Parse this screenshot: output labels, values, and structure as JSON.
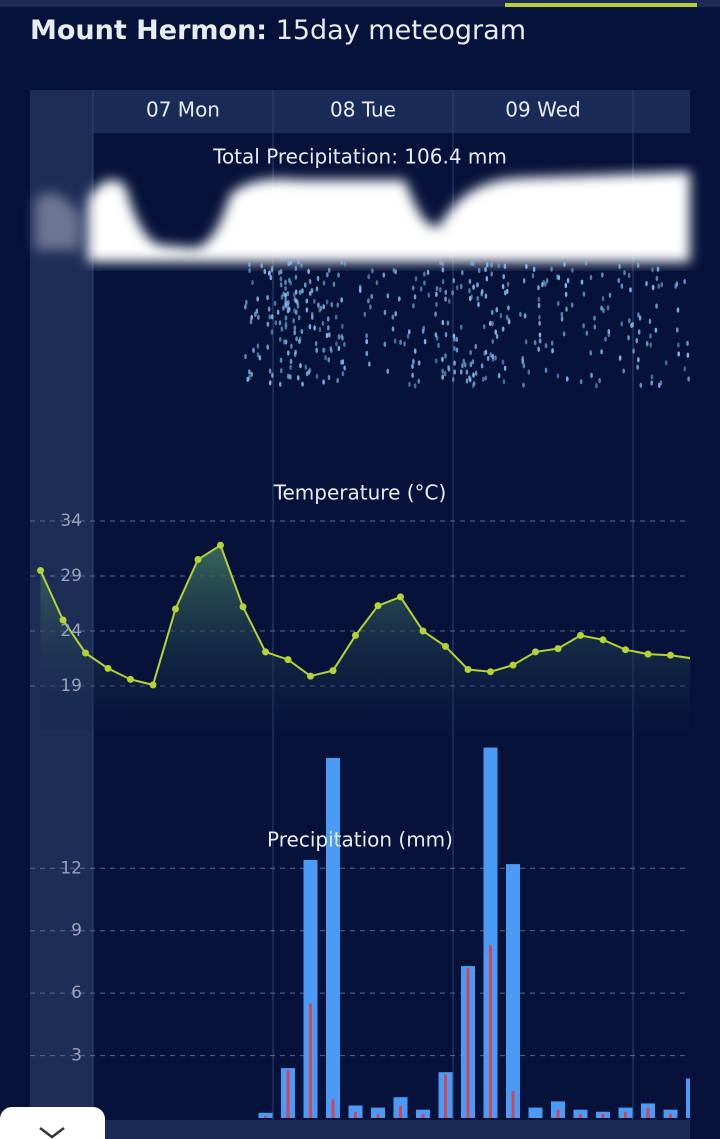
{
  "header": {
    "title_bold": "Mount Hermon:",
    "title_rest": "15day meteogram"
  },
  "days": [
    "07 Mon",
    "08 Tue",
    "09 Wed"
  ],
  "total_precip": "Total Precipitation: 106.4 mm",
  "chart_data": [
    {
      "type": "line",
      "title": "Temperature (°C)",
      "x": [
        -7,
        -4,
        -1,
        2,
        5,
        8,
        11,
        14,
        17,
        20,
        23,
        26,
        29,
        32,
        35,
        38,
        41,
        44,
        47,
        50,
        53,
        56,
        59,
        62,
        65,
        68,
        71,
        74,
        77,
        80
      ],
      "series": [
        {
          "color": "#b5d334",
          "values": [
            29.5,
            25,
            22,
            20.6,
            19.6,
            19.1,
            26,
            30.5,
            31.8,
            26.2,
            22.1,
            21.4,
            19.9,
            20.4,
            23.6,
            26.3,
            27.1,
            24.0,
            22.6,
            20.5,
            20.3,
            20.9,
            22.1,
            22.4,
            23.6,
            23.2,
            22.3,
            21.9,
            21.8,
            21.5
          ]
        }
      ],
      "xlim": [
        -8.4,
        79.6
      ],
      "ylim": [
        15,
        35
      ],
      "yticks": [
        19,
        24,
        29,
        34
      ],
      "grid": true
    },
    {
      "type": "bar",
      "title": "Precipitation (mm)",
      "x": [
        23,
        26,
        29,
        32,
        35,
        38,
        41,
        44,
        47,
        50,
        53,
        56,
        59,
        62,
        65,
        68,
        71,
        74,
        77,
        80
      ],
      "series": [
        {
          "color": "#4a9bf5",
          "values": [
            0.25,
            2.4,
            12.4,
            17.3,
            0.6,
            0.5,
            1.0,
            0.4,
            2.2,
            7.3,
            17.8,
            12.2,
            0.5,
            0.8,
            0.4,
            0.3,
            0.5,
            0.7,
            0.4,
            1.9
          ]
        },
        {
          "color": "#d0455a",
          "values": [
            0.1,
            2.3,
            5.5,
            0.9,
            0.3,
            0.2,
            0.6,
            0.2,
            2.1,
            7.2,
            8.3,
            1.3,
            0,
            0.4,
            0.2,
            0.2,
            0.3,
            0.5,
            0.2,
            0
          ]
        }
      ],
      "xlim": [
        -8.4,
        79.6
      ],
      "ylim": [
        0,
        18.5
      ],
      "yticks": [
        3,
        6,
        9,
        12
      ],
      "grid": true
    }
  ]
}
